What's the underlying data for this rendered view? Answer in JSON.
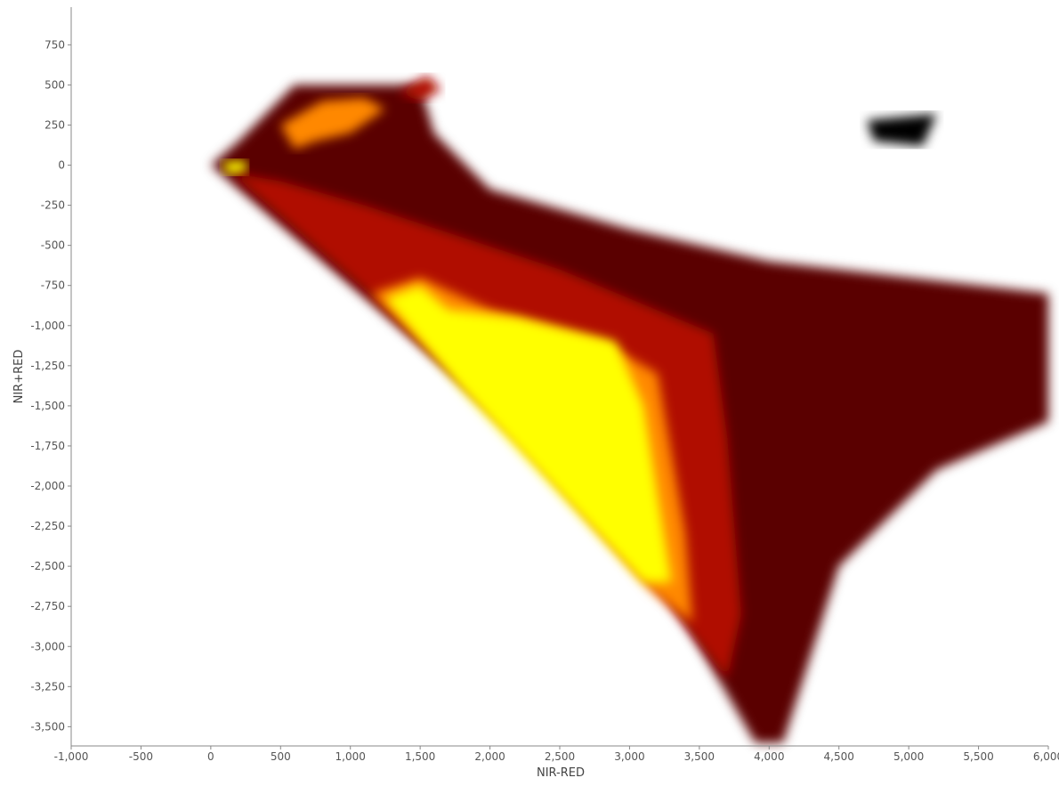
{
  "chart_data": {
    "type": "heatmap",
    "subtype": "density-scatter",
    "title": "",
    "xlabel": "NIR-RED",
    "ylabel": "NIR+RED",
    "xlim": [
      -1000,
      6000
    ],
    "ylim": [
      -3620,
      985
    ],
    "x_ticks": [
      -1000,
      -500,
      0,
      500,
      1000,
      1500,
      2000,
      2500,
      3000,
      3500,
      4000,
      4500,
      5000,
      5500,
      6000
    ],
    "x_tick_labels": [
      "-1,000",
      "-500",
      "0",
      "500",
      "1,000",
      "1,500",
      "2,000",
      "2,500",
      "3,000",
      "3,500",
      "4,000",
      "4,500",
      "5,000",
      "5,500",
      "6,000"
    ],
    "y_ticks": [
      750,
      500,
      250,
      0,
      -250,
      -500,
      -750,
      -1000,
      -1250,
      -1500,
      -1750,
      -2000,
      -2250,
      -2500,
      -2750,
      -3000,
      -3250,
      -3500
    ],
    "y_tick_labels": [
      "750",
      "500",
      "250",
      "0",
      "-250",
      "-500",
      "-750",
      "-1,000",
      "-1,250",
      "-1,500",
      "-1,750",
      "-2,000",
      "-2,250",
      "-2,500",
      "-2,750",
      "-3,000",
      "-3,250",
      "-3,500"
    ],
    "grid": false,
    "colormap": [
      "#000000",
      "#5a0000",
      "#b01000",
      "#ff3000",
      "#ff8800",
      "#ffff00"
    ],
    "density_regions": [
      {
        "polygon": [
          [
            0,
            0
          ],
          [
            200,
            -150
          ],
          [
            1200,
            -900
          ],
          [
            2200,
            -1650
          ],
          [
            3300,
            -2700
          ],
          [
            3900,
            -3600
          ],
          [
            4100,
            -3600
          ],
          [
            4500,
            -2500
          ],
          [
            5200,
            -1900
          ],
          [
            6000,
            -1600
          ],
          [
            6000,
            -800
          ],
          [
            5000,
            -700
          ],
          [
            4000,
            -600
          ],
          [
            3000,
            -400
          ],
          [
            2000,
            -150
          ],
          [
            1600,
            200
          ],
          [
            1500,
            500
          ],
          [
            1200,
            500
          ],
          [
            600,
            500
          ],
          [
            200,
            150
          ]
        ],
        "level": 0.16
      },
      {
        "polygon": [
          [
            150,
            -50
          ],
          [
            1200,
            -850
          ],
          [
            2200,
            -1700
          ],
          [
            3200,
            -2650
          ],
          [
            3700,
            -3200
          ],
          [
            3800,
            -2800
          ],
          [
            3700,
            -1700
          ],
          [
            3600,
            -1050
          ],
          [
            2500,
            -650
          ],
          [
            1800,
            -450
          ],
          [
            1100,
            -250
          ],
          [
            500,
            -100
          ]
        ],
        "level": 0.4
      },
      {
        "polygon": [
          [
            1150,
            -800
          ],
          [
            1700,
            -1250
          ],
          [
            2500,
            -2000
          ],
          [
            3150,
            -2650
          ],
          [
            3450,
            -2850
          ],
          [
            3400,
            -2300
          ],
          [
            3200,
            -1300
          ],
          [
            2800,
            -1100
          ],
          [
            2000,
            -900
          ],
          [
            1500,
            -700
          ]
        ],
        "level": 0.72
      },
      {
        "polygon": [
          [
            1250,
            -830
          ],
          [
            1800,
            -1400
          ],
          [
            2500,
            -2050
          ],
          [
            3100,
            -2600
          ],
          [
            3300,
            -2600
          ],
          [
            3100,
            -1500
          ],
          [
            2900,
            -1100
          ],
          [
            2200,
            -950
          ],
          [
            1700,
            -900
          ],
          [
            1500,
            -750
          ]
        ],
        "level": 1.0
      },
      {
        "polygon": [
          [
            500,
            250
          ],
          [
            800,
            400
          ],
          [
            1100,
            420
          ],
          [
            1250,
            350
          ],
          [
            1000,
            200
          ],
          [
            750,
            150
          ],
          [
            600,
            100
          ]
        ],
        "level": 0.85
      },
      {
        "polygon": [
          [
            80,
            20
          ],
          [
            250,
            30
          ],
          [
            260,
            -40
          ],
          [
            120,
            -60
          ]
        ],
        "level": 0.95
      },
      {
        "polygon": [
          [
            1350,
            450
          ],
          [
            1550,
            560
          ],
          [
            1650,
            470
          ],
          [
            1500,
            400
          ]
        ],
        "level": 0.45
      },
      {
        "polygon": [
          [
            4700,
            280
          ],
          [
            5200,
            320
          ],
          [
            5100,
            120
          ],
          [
            4750,
            150
          ]
        ],
        "level": 0.05
      }
    ]
  }
}
